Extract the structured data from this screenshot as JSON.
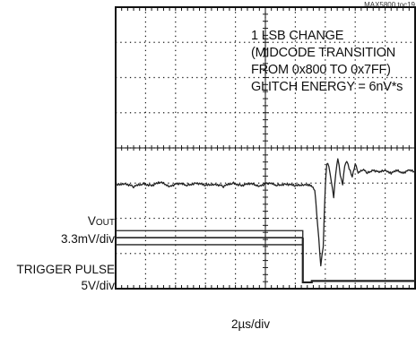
{
  "chart_data": {
    "type": "line",
    "figure_id": "MAX5800 toc19",
    "annotation_lines": [
      "1 LSB CHANGE",
      "(MIDCODE TRANSITION",
      "FROM 0x800 TO 0x7FF)",
      "GLITCH ENERGY = 6nV*s"
    ],
    "channels": [
      {
        "name_main": "V",
        "name_sub": "OUT",
        "scale": "3.3mV/div",
        "color": "#222222"
      },
      {
        "name": "TRIGGER PULSE",
        "scale": "5V/div",
        "color": "#222222"
      }
    ],
    "xlabel": "2µs/div",
    "grid": {
      "h_divisions": 10,
      "v_divisions": 8,
      "dotted": true,
      "center_cross_ticks": true
    },
    "vout_trace_divs": [
      [
        0,
        5.07
      ],
      [
        0.3,
        5.0
      ],
      [
        0.6,
        5.1
      ],
      [
        0.9,
        5.02
      ],
      [
        1.2,
        5.06
      ],
      [
        1.5,
        4.98
      ],
      [
        1.8,
        5.08
      ],
      [
        2.1,
        5.01
      ],
      [
        2.4,
        5.06
      ],
      [
        2.7,
        4.99
      ],
      [
        3.0,
        5.07
      ],
      [
        3.3,
        5.02
      ],
      [
        3.6,
        5.09
      ],
      [
        3.9,
        5.0
      ],
      [
        4.2,
        5.06
      ],
      [
        4.5,
        5.02
      ],
      [
        4.8,
        5.07
      ],
      [
        5.1,
        5.0
      ],
      [
        5.4,
        5.06
      ],
      [
        5.7,
        5.02
      ],
      [
        6.0,
        5.08
      ],
      [
        6.3,
        5.03
      ],
      [
        6.5,
        5.05
      ],
      [
        6.65,
        5.2
      ],
      [
        6.75,
        6.2
      ],
      [
        6.85,
        7.35
      ],
      [
        6.93,
        6.8
      ],
      [
        7.0,
        5.1
      ],
      [
        7.05,
        4.45
      ],
      [
        7.12,
        4.5
      ],
      [
        7.2,
        4.95
      ],
      [
        7.28,
        5.4
      ],
      [
        7.35,
        4.7
      ],
      [
        7.42,
        4.3
      ],
      [
        7.5,
        4.75
      ],
      [
        7.58,
        5.05
      ],
      [
        7.65,
        4.5
      ],
      [
        7.72,
        4.35
      ],
      [
        7.8,
        4.6
      ],
      [
        7.9,
        4.8
      ],
      [
        8.0,
        4.45
      ],
      [
        8.1,
        4.7
      ],
      [
        8.25,
        4.6
      ],
      [
        8.4,
        4.72
      ],
      [
        8.6,
        4.62
      ],
      [
        8.8,
        4.7
      ],
      [
        9.0,
        4.63
      ],
      [
        9.2,
        4.71
      ],
      [
        9.4,
        4.65
      ],
      [
        9.6,
        4.7
      ],
      [
        9.8,
        4.64
      ],
      [
        10.0,
        4.68
      ]
    ],
    "trigger_trace_divs": [
      [
        0,
        6.55
      ],
      [
        6.25,
        6.55
      ],
      [
        6.25,
        7.82
      ],
      [
        6.55,
        7.82
      ],
      [
        6.55,
        7.78
      ],
      [
        10.0,
        7.78
      ]
    ],
    "trigger_caps_divs": [
      [
        0,
        6.35
      ],
      [
        6.25,
        6.35
      ],
      [
        6.25,
        6.75
      ],
      [
        0,
        6.75
      ]
    ]
  }
}
